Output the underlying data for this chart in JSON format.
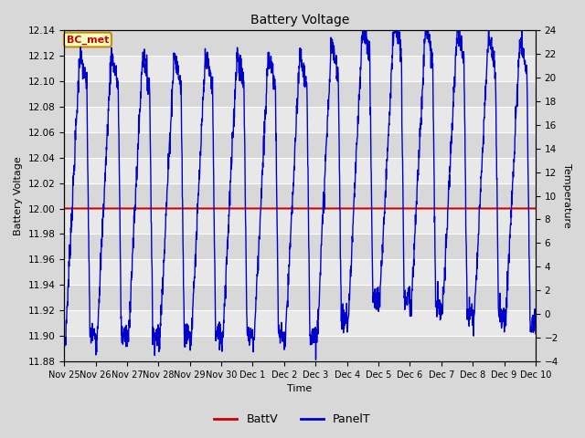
{
  "title": "Battery Voltage",
  "xlabel": "Time",
  "ylabel_left": "Battery Voltage",
  "ylabel_right": "Temperature",
  "ylim_left": [
    11.88,
    12.14
  ],
  "ylim_right": [
    -4,
    24
  ],
  "yticks_left": [
    11.88,
    11.9,
    11.92,
    11.94,
    11.96,
    11.98,
    12.0,
    12.02,
    12.04,
    12.06,
    12.08,
    12.1,
    12.12,
    12.14
  ],
  "yticks_right": [
    -4,
    -2,
    0,
    2,
    4,
    6,
    8,
    10,
    12,
    14,
    16,
    18,
    20,
    22,
    24
  ],
  "batt_v": 12.0,
  "bg_color": "#d8d8d8",
  "plot_bg_color": "#e8e8e8",
  "grid_color": "#ffffff",
  "line_color_batt": "#cc0000",
  "line_color_panel": "#0000cc",
  "legend_label_batt": "BattV",
  "legend_label_panel": "PanelT",
  "annotation_text": "BC_met",
  "annotation_bg": "#ffffc0",
  "annotation_border": "#cc8800",
  "annotation_text_color": "#cc0000",
  "xtick_labels": [
    "Nov 25",
    "Nov 26",
    "Nov 27",
    "Nov 28",
    "Nov 29",
    "Nov 30",
    "Dec 1",
    "Dec 2",
    "Dec 3",
    "Dec 4",
    "Dec 5",
    "Dec 6",
    "Dec 7",
    "Dec 8",
    "Dec 9",
    "Dec 10"
  ]
}
